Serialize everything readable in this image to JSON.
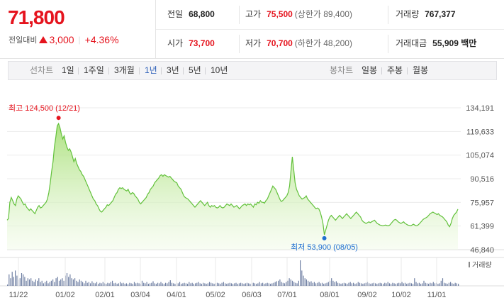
{
  "price": {
    "current": "71,800",
    "change_label": "전일대비",
    "change_amount": "3,000",
    "change_percent": "+4.36%",
    "color": "#e5141e"
  },
  "stats": {
    "prev_close": {
      "label": "전일",
      "value": "68,800"
    },
    "high": {
      "label": "고가",
      "value": "75,500",
      "limit": "(상한가 89,400)"
    },
    "volume": {
      "label": "거래량",
      "value": "767,377"
    },
    "open": {
      "label": "시가",
      "value": "73,700"
    },
    "low": {
      "label": "저가",
      "value": "70,700",
      "limit": "(하한가 48,200)"
    },
    "trade_value": {
      "label": "거래대금",
      "value": "55,909 백만"
    }
  },
  "toolbar": {
    "line_chart_label": "선차트",
    "line_periods": [
      "1일",
      "1주일",
      "3개월",
      "1년",
      "3년",
      "5년",
      "10년"
    ],
    "active_period": "1년",
    "candle_chart_label": "봉차트",
    "candle_periods": [
      "일봉",
      "주봉",
      "월봉"
    ]
  },
  "chart_data": {
    "type": "area",
    "y_ticks": [
      "134,191",
      "119,633",
      "105,074",
      "90,516",
      "75,957",
      "61,399",
      "46,840"
    ],
    "ylim": [
      46840,
      134191
    ],
    "x_ticks": [
      "11/22",
      "01/02",
      "02/01",
      "03/04",
      "04/01",
      "05/02",
      "06/03",
      "07/01",
      "08/01",
      "09/02",
      "10/02",
      "11/01"
    ],
    "high_label": "최고 124,500 (12/21)",
    "low_label": "최저 53,900 (08/05)",
    "high_value": 124500,
    "low_value": 53900,
    "volume_label": "거래량",
    "line_color": "#62c13b",
    "series": [
      {
        "values": [
          65000,
          66000,
          76000,
          79000,
          77000,
          75000,
          74000,
          78000,
          80000,
          79000,
          78000,
          76000,
          74500,
          75000,
          73000,
          72000,
          71000,
          72000,
          71000,
          70000,
          69000,
          71000,
          73000,
          74000,
          72500,
          73000,
          74000,
          75000,
          76000,
          78000,
          82000,
          88000,
          95000,
          101000,
          110000,
          116000,
          123000,
          124500,
          122000,
          118000,
          115000,
          117000,
          113000,
          110000,
          108000,
          109000,
          107000,
          104000,
          101000,
          103000,
          100000,
          98000,
          96000,
          95000,
          93000,
          92000,
          90000,
          88000,
          86000,
          84000,
          82000,
          80000,
          78000,
          77000,
          75000,
          74000,
          72000,
          70500,
          70000,
          71000,
          72000,
          73000,
          74500,
          74000,
          75000,
          76000,
          77000,
          79000,
          81000,
          82000,
          84000,
          85000,
          84500,
          85000,
          84000,
          83500,
          83000,
          84000,
          82000,
          81000,
          82000,
          81500,
          80000,
          79000,
          78000,
          76000,
          75000,
          76000,
          77000,
          78000,
          79000,
          81000,
          82000,
          84000,
          85000,
          86000,
          88000,
          89000,
          90000,
          91000,
          92500,
          93000,
          92000,
          93000,
          92500,
          92000,
          91500,
          92000,
          91000,
          90000,
          89000,
          88500,
          88000,
          86000,
          85000,
          84000,
          82000,
          80000,
          79000,
          78500,
          78000,
          77000,
          76000,
          75000,
          74000,
          73000,
          74000,
          75000,
          76000,
          77000,
          76000,
          75000,
          74000,
          75000,
          76000,
          74000,
          73000,
          74000,
          73500,
          74000,
          73000,
          72500,
          73000,
          74000,
          73000,
          72500,
          73000,
          74000,
          75000,
          74500,
          74000,
          75000,
          74000,
          73000,
          73500,
          74000,
          73000,
          72000,
          73000,
          74000,
          74500,
          75000,
          74000,
          75000,
          74500,
          75000,
          74000,
          73000,
          75000,
          74500,
          76000,
          75500,
          77000,
          76000,
          76000,
          75500,
          77000,
          78000,
          80000,
          82000,
          84000,
          86000,
          85000,
          84000,
          82000,
          80000,
          78000,
          76500,
          77000,
          78000,
          79000,
          80000,
          82000,
          86000,
          95000,
          104000,
          96000,
          88000,
          84000,
          82000,
          80000,
          79000,
          78000,
          78500,
          79000,
          80000,
          78000,
          77000,
          76000,
          75000,
          74000,
          73000,
          72000,
          72500,
          72000,
          70000,
          67000,
          63000,
          56000,
          59000,
          62000,
          65000,
          67000,
          68000,
          67000,
          66000,
          65000,
          66000,
          67000,
          68000,
          67000,
          66000,
          67000,
          68000,
          69000,
          68000,
          67000,
          66000,
          67000,
          68000,
          69000,
          70000,
          69000,
          68000,
          67000,
          65000,
          64000,
          63500,
          63000,
          63500,
          64000,
          63500,
          64000,
          64500,
          65000,
          64000,
          63000,
          62500,
          62000,
          61800,
          61500,
          61800,
          62000,
          61700,
          61500,
          62000,
          63000,
          64000,
          65000,
          65500,
          65000,
          64000,
          63500,
          63000,
          63500,
          64000,
          63000,
          62500,
          62000,
          61800,
          61500,
          62000,
          62500,
          62000,
          61500,
          61800,
          62500,
          63500,
          64500,
          65500,
          66000,
          66500,
          67000,
          68000,
          69000,
          69500,
          70000,
          69500,
          69000,
          68500,
          69000,
          68000,
          67500,
          67000,
          66000,
          65000,
          64000,
          62000,
          61000,
          63000,
          66000,
          68000,
          69000,
          70000,
          71800
        ]
      }
    ],
    "volume_values": [
      0.05,
      0.45,
      0.3,
      0.55,
      0.35,
      0.6,
      0.4,
      0.25,
      0.3,
      0.5,
      0.45,
      0.35,
      0.2,
      0.3,
      0.25,
      0.3,
      0.2,
      0.15,
      0.25,
      0.2,
      0.3,
      0.15,
      0.2,
      0.1,
      0.15,
      0.2,
      0.1,
      0.15,
      0.2,
      0.25,
      0.15,
      0.3,
      0.35,
      0.2,
      0.25,
      0.3,
      0.2,
      0.4,
      0.5,
      0.35,
      0.45,
      0.3,
      0.25,
      0.3,
      0.2,
      0.15,
      0.25,
      0.2,
      0.15,
      0.1,
      0.2,
      0.12,
      0.15,
      0.1,
      0.18,
      0.12,
      0.1,
      0.15,
      0.08,
      0.12,
      0.1,
      0.15,
      0.1,
      0.08,
      0.12,
      0.1,
      0.15,
      0.2,
      0.1,
      0.12,
      0.08,
      0.1,
      0.15,
      0.1,
      0.12,
      0.08,
      0.1,
      0.07,
      0.12,
      0.1,
      0.08,
      0.15,
      0.1,
      0.12,
      0.1,
      0.08,
      0.2,
      0.12,
      0.1,
      0.15,
      0.08,
      0.1,
      0.12,
      0.18,
      0.1,
      0.08,
      0.12,
      0.1,
      0.15,
      0.1,
      0.08,
      0.12,
      0.1,
      0.15,
      0.22,
      0.12,
      0.1,
      0.08,
      0.12,
      0.1,
      0.15,
      0.08,
      0.1,
      0.12,
      0.1,
      0.08,
      0.15,
      0.1,
      0.12,
      0.08,
      0.1,
      0.12,
      0.15,
      0.1,
      0.08,
      0.12,
      0.1,
      0.08,
      0.1,
      0.15,
      0.12,
      0.1,
      0.08,
      0.1,
      0.12,
      0.1,
      0.08,
      0.12,
      0.15,
      0.1,
      0.08,
      0.1,
      0.12,
      0.1,
      0.08,
      0.1,
      0.12,
      0.08,
      0.1,
      0.12,
      0.1,
      0.08,
      0.1,
      0.12,
      0.1,
      0.08,
      0.1,
      0.12,
      0.1,
      0.08,
      0.1,
      0.15,
      0.1,
      0.12,
      0.08,
      0.1,
      0.12,
      0.1,
      0.08,
      0.1,
      0.12,
      0.15,
      0.18,
      0.2,
      0.25,
      0.15,
      0.12,
      0.1,
      0.15,
      0.2,
      0.3,
      0.25,
      0.2,
      0.15,
      0.12,
      0.1,
      0.2,
      1.0,
      0.6,
      0.4,
      0.3,
      0.25,
      0.2,
      0.15,
      0.18,
      0.12,
      0.15,
      0.1,
      0.12,
      0.15,
      0.1,
      0.12,
      0.08,
      0.1,
      0.12,
      0.15,
      0.2,
      0.3,
      0.2,
      0.15,
      0.18,
      0.12,
      0.1,
      0.08,
      0.1,
      0.12,
      0.1,
      0.08,
      0.12,
      0.15,
      0.1,
      0.12,
      0.08,
      0.1,
      0.15,
      0.12,
      0.1,
      0.08,
      0.1,
      0.12,
      0.15,
      0.1,
      0.08,
      0.1,
      0.12,
      0.1,
      0.08,
      0.1,
      0.12,
      0.1,
      0.08,
      0.12,
      0.1,
      0.15,
      0.1,
      0.08,
      0.12,
      0.1,
      0.08,
      0.1,
      0.12,
      0.1,
      0.15,
      0.1,
      0.12,
      0.08,
      0.1,
      0.12,
      0.1,
      0.08,
      0.3,
      0.15,
      0.1,
      0.12,
      0.08,
      0.1,
      0.2,
      0.12,
      0.1,
      0.08,
      0.12,
      0.1,
      0.15,
      0.1,
      0.12,
      0.08,
      0.1,
      0.2,
      0.3,
      0.12,
      0.1,
      0.08,
      0.12,
      0.15,
      0.1,
      0.08,
      0.12,
      0.1,
      0.08
    ]
  }
}
